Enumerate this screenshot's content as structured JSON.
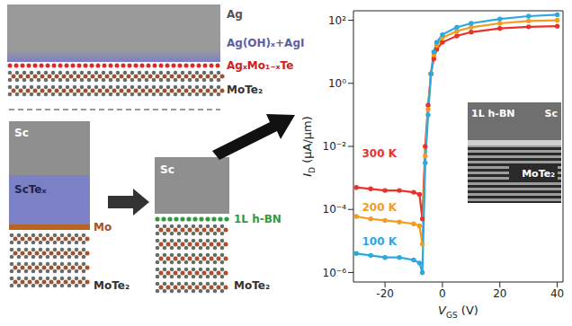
{
  "diagram": {
    "top": {
      "labels": [
        "Ag",
        "Ag(OH)ₓ+AgI",
        "AgₓMo₁₋ₓTe",
        "MoTe₂"
      ]
    },
    "bottom": {
      "before": {
        "labels": [
          "Sc",
          "ScTeₓ",
          "Mo",
          "MoTe₂"
        ]
      },
      "after": {
        "labels": [
          "Sc",
          "1L h-BN",
          "MoTe₂"
        ]
      }
    }
  },
  "chart_data": {
    "type": "line",
    "log": "y",
    "x_label": {
      "text": "V",
      "subscript": "GS",
      "unit": " (V)"
    },
    "y_label": {
      "text": "I",
      "subscript": "D",
      "unit": " (μA/μm)"
    },
    "x": [
      -30,
      -25,
      -20,
      -15,
      -10,
      -8,
      -7,
      -6,
      -5,
      -4,
      -3,
      -2,
      0,
      5,
      10,
      20,
      30,
      40
    ],
    "series": [
      {
        "name": "300 K",
        "color": "#e8322b",
        "values": [
          0.0005,
          0.00045,
          0.0004,
          0.0004,
          0.00035,
          0.0003,
          5e-05,
          0.01,
          0.2,
          2,
          6,
          12,
          20,
          32,
          42,
          55,
          62,
          65
        ]
      },
      {
        "name": "200 K",
        "color": "#f39c1f",
        "values": [
          6e-05,
          5e-05,
          4.5e-05,
          4e-05,
          3.5e-05,
          3e-05,
          8e-06,
          0.005,
          0.15,
          2,
          8,
          16,
          28,
          45,
          60,
          80,
          95,
          100
        ]
      },
      {
        "name": "100 K",
        "color": "#2ba8e0",
        "values": [
          4e-06,
          3.5e-06,
          3e-06,
          3e-06,
          2.5e-06,
          2e-06,
          1e-06,
          0.003,
          0.1,
          2,
          10,
          20,
          35,
          60,
          80,
          110,
          135,
          150
        ]
      }
    ],
    "xlim": [
      -31,
      42
    ],
    "ylim": [
      5e-07,
      200
    ],
    "xticks": [
      -20,
      0,
      20,
      40
    ],
    "yticks": [
      {
        "value": 1e-06,
        "label": "10⁻⁶"
      },
      {
        "value": 0.0001,
        "label": "10⁻⁴"
      },
      {
        "value": 0.01,
        "label": "10⁻²"
      },
      {
        "value": 1,
        "label": "10⁰"
      },
      {
        "value": 100,
        "label": "10²"
      }
    ],
    "annotations": [
      {
        "text": "300 K",
        "x": -22,
        "y": 0.006
      },
      {
        "text": "200 K",
        "x": -22,
        "y": 0.00012
      },
      {
        "text": "100 K",
        "x": -22,
        "y": 1e-05
      }
    ],
    "inset": {
      "labels": [
        "1L h-BN",
        "Sc",
        "MoTe₂"
      ]
    }
  }
}
